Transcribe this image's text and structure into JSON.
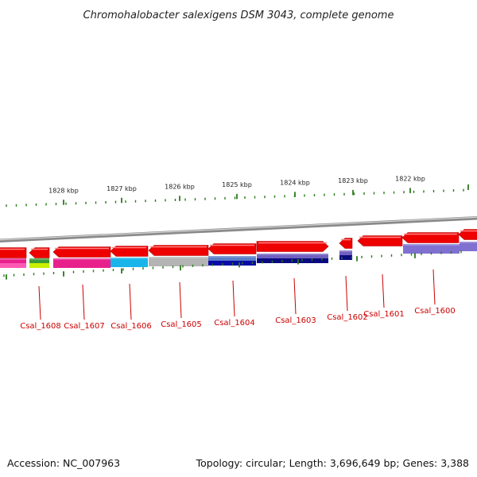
{
  "title": "Chromohalobacter salexigens DSM 3043, complete genome",
  "kbp_labels": [
    "1828 kbp",
    "1827 kbp",
    "1826 kbp",
    "1825 kbp",
    "1824 kbp",
    "1823 kbp",
    "1822 kbp"
  ],
  "genes": [
    {
      "id": "Csal_1608",
      "label": "Csal_1608",
      "strand": "reverse",
      "arrow_color": "#ee0000",
      "track_color": "#3a9a3a",
      "track_color2": "#c8f000"
    },
    {
      "id": "Csal_1607",
      "label": "Csal_1607",
      "strand": "reverse",
      "arrow_color": "#ee0000",
      "track_color": "#e8208c"
    },
    {
      "id": "Csal_1606",
      "label": "Csal_1606",
      "strand": "reverse",
      "arrow_color": "#ee0000",
      "track_color": "#19b5ea"
    },
    {
      "id": "Csal_1605",
      "label": "Csal_1605",
      "strand": "reverse",
      "arrow_color": "#ee0000",
      "track_color": "#b4b4b4"
    },
    {
      "id": "Csal_1604",
      "label": "Csal_1604",
      "strand": "reverse",
      "arrow_color": "#ee0000",
      "track_color": "#5a7ec8",
      "track_color2": "#0a0aa8"
    },
    {
      "id": "Csal_1603",
      "label": "Csal_1603",
      "strand": "forward",
      "arrow_color": "#ee0000",
      "track_color": "#7060c0",
      "track_color2": "#0a0a80"
    },
    {
      "id": "Csal_1602",
      "label": "Csal_1602",
      "strand": "reverse",
      "arrow_color": "#ee0000",
      "track_color": "#7060c0",
      "track_color2": "#0a0a80"
    },
    {
      "id": "Csal_1601",
      "label": "Csal_1601",
      "strand": "reverse",
      "arrow_color": "#ee0000"
    },
    {
      "id": "Csal_1600",
      "label": "Csal_1600",
      "strand": "reverse",
      "arrow_color": "#ee0000",
      "track_color": "#8070d0"
    }
  ],
  "footer": {
    "accession": "Accession: NC_007963",
    "summary": "Topology: circular; Length: 3,696,649 bp; Genes: 3,388"
  },
  "colors": {
    "backbone": "#8a8a8a",
    "tick": "#2a7a1a",
    "gene_arrow": "#ee0000",
    "gene_label": "#cc0000"
  }
}
